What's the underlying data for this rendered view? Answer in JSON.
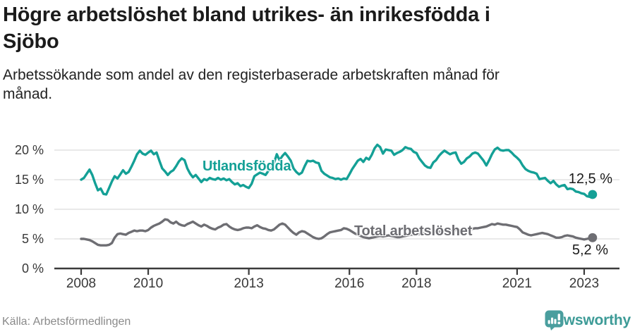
{
  "header": {
    "title": "Högre arbetslöshet bland utrikes- än inrikesfödda i\nSjöbo",
    "subtitle": "Arbetssökande som andel av den registerbaserade arbetskraften månad för\nmånad."
  },
  "footer": {
    "source": "Källa: Arbetsförmedlingen",
    "brand": "Newsworthy"
  },
  "colors": {
    "series_utlandsfodda": "#14a096",
    "series_total": "#6e6e73",
    "gridline": "#dcdcdc",
    "axis": "#3b3b3b",
    "tick_label": "#383838",
    "value_label": "#1a1a1a",
    "brand_teal": "#4a9e9e",
    "brand_text": "#3d9b97"
  },
  "chart_data": {
    "type": "line",
    "title": "Högre arbetslöshet bland utrikes- än inrikesfödda i Sjöbo",
    "subtitle": "Arbetssökande som andel av den registerbaserade arbetskraften månad för månad.",
    "unit": "%",
    "x_start_year": 2008,
    "x_step_months": 1,
    "x_end": 2023.25,
    "ylim": [
      0,
      22
    ],
    "grid": true,
    "y_ticks": [
      {
        "value": 0,
        "label": "0 %"
      },
      {
        "value": 5,
        "label": "5 %"
      },
      {
        "value": 10,
        "label": "10 %"
      },
      {
        "value": 15,
        "label": "15 %"
      },
      {
        "value": 20,
        "label": "20 %"
      }
    ],
    "x_ticks": [
      {
        "value": 2008,
        "label": "2008"
      },
      {
        "value": 2010,
        "label": "2010"
      },
      {
        "value": 2013,
        "label": "2013"
      },
      {
        "value": 2016,
        "label": "2016"
      },
      {
        "value": 2018,
        "label": "2018"
      },
      {
        "value": 2021,
        "label": "2021"
      },
      {
        "value": 2023,
        "label": "2023"
      }
    ],
    "series": [
      {
        "name": "Utlandsfödda",
        "color": "#14a096",
        "end_value": 12.5,
        "end_label": "12,5 %",
        "values": [
          15.0,
          15.3,
          16.0,
          16.7,
          15.8,
          14.4,
          13.2,
          13.5,
          12.6,
          12.5,
          13.6,
          14.7,
          15.6,
          15.2,
          15.9,
          16.6,
          16.0,
          16.3,
          17.2,
          18.2,
          19.3,
          19.9,
          19.4,
          19.2,
          19.6,
          19.9,
          19.3,
          19.6,
          18.2,
          16.9,
          16.4,
          15.8,
          16.3,
          16.6,
          17.3,
          18.1,
          18.6,
          18.3,
          16.9,
          16.0,
          15.4,
          15.8,
          15.2,
          14.6,
          15.1,
          14.9,
          15.3,
          15.1,
          15.0,
          15.3,
          15.0,
          15.2,
          14.9,
          15.1,
          14.6,
          14.2,
          14.4,
          13.9,
          14.1,
          13.8,
          13.6,
          14.3,
          15.6,
          15.9,
          16.2,
          16.0,
          15.8,
          16.5,
          16.9,
          17.8,
          19.3,
          18.3,
          19.0,
          19.5,
          18.9,
          18.2,
          16.9,
          16.3,
          15.9,
          16.2,
          17.3,
          18.2,
          18.1,
          18.2,
          17.9,
          17.8,
          16.5,
          16.0,
          15.7,
          15.4,
          15.3,
          15.1,
          15.2,
          15.0,
          15.2,
          15.1,
          15.9,
          16.8,
          17.5,
          18.2,
          18.5,
          18.0,
          18.7,
          18.4,
          19.2,
          20.3,
          20.9,
          20.5,
          19.4,
          20.1,
          20.0,
          19.9,
          19.2,
          19.5,
          19.7,
          20.0,
          20.5,
          20.3,
          20.2,
          19.7,
          19.5,
          18.6,
          18.0,
          17.4,
          17.1,
          17.0,
          17.9,
          18.3,
          19.0,
          19.5,
          19.9,
          19.6,
          19.3,
          19.5,
          19.6,
          18.4,
          17.7,
          18.0,
          18.6,
          18.9,
          19.4,
          19.6,
          19.4,
          18.8,
          18.2,
          17.4,
          18.3,
          19.3,
          20.1,
          20.4,
          20.0,
          19.9,
          20.0,
          20.0,
          19.6,
          19.1,
          18.7,
          18.2,
          17.4,
          16.8,
          16.5,
          16.3,
          16.2,
          16.0,
          15.1,
          15.2,
          15.3,
          14.8,
          14.4,
          14.8,
          14.2,
          13.8,
          14.0,
          14.1,
          13.4,
          13.5,
          13.4,
          13.0,
          12.9,
          12.7,
          12.6,
          12.2,
          12.1,
          12.5
        ]
      },
      {
        "name": "Total arbetslöshet",
        "color": "#6e6e73",
        "end_value": 5.2,
        "end_label": "5,2 %",
        "values": [
          5.0,
          5.0,
          4.9,
          4.8,
          4.6,
          4.3,
          4.0,
          3.9,
          3.9,
          3.9,
          4.0,
          4.3,
          5.2,
          5.8,
          5.9,
          5.8,
          5.7,
          6.0,
          6.2,
          6.4,
          6.3,
          6.4,
          6.4,
          6.3,
          6.5,
          6.9,
          7.2,
          7.4,
          7.6,
          7.9,
          8.3,
          8.2,
          7.8,
          7.6,
          7.9,
          7.5,
          7.3,
          7.2,
          7.5,
          7.7,
          7.9,
          7.6,
          7.3,
          7.1,
          7.4,
          7.2,
          6.9,
          6.7,
          6.6,
          6.9,
          7.1,
          7.4,
          7.5,
          7.1,
          6.8,
          6.6,
          6.5,
          6.6,
          6.8,
          6.9,
          6.9,
          6.8,
          7.1,
          7.3,
          7.0,
          6.8,
          6.7,
          6.5,
          6.4,
          6.6,
          7.0,
          7.4,
          7.6,
          7.4,
          6.9,
          6.4,
          6.0,
          5.7,
          6.1,
          6.3,
          6.2,
          5.9,
          5.6,
          5.3,
          5.1,
          5.0,
          5.1,
          5.4,
          5.8,
          6.1,
          6.2,
          6.3,
          6.4,
          6.5,
          6.8,
          6.7,
          6.5,
          6.2,
          5.9,
          5.7,
          5.5,
          5.3,
          5.2,
          5.1,
          5.2,
          5.3,
          5.4,
          5.5,
          5.4,
          5.5,
          5.6,
          5.5,
          5.4,
          5.3,
          5.3,
          5.4,
          5.5,
          5.6,
          5.7,
          5.7,
          5.7,
          5.8,
          5.9,
          6.0,
          6.0,
          6.1,
          6.1,
          6.2,
          6.2,
          6.3,
          6.3,
          6.4,
          6.4,
          6.4,
          6.5,
          6.5,
          6.5,
          6.6,
          6.6,
          6.7,
          6.7,
          6.8,
          6.8,
          6.9,
          7.0,
          7.1,
          7.3,
          7.5,
          7.4,
          7.6,
          7.5,
          7.4,
          7.4,
          7.3,
          7.2,
          7.1,
          7.0,
          6.6,
          6.1,
          5.9,
          5.7,
          5.6,
          5.7,
          5.8,
          5.9,
          6.0,
          5.9,
          5.8,
          5.6,
          5.4,
          5.2,
          5.2,
          5.3,
          5.5,
          5.6,
          5.5,
          5.4,
          5.2,
          5.1,
          5.0,
          4.9,
          5.0,
          5.1,
          5.2
        ]
      }
    ],
    "legend_position": "inline-labels"
  }
}
